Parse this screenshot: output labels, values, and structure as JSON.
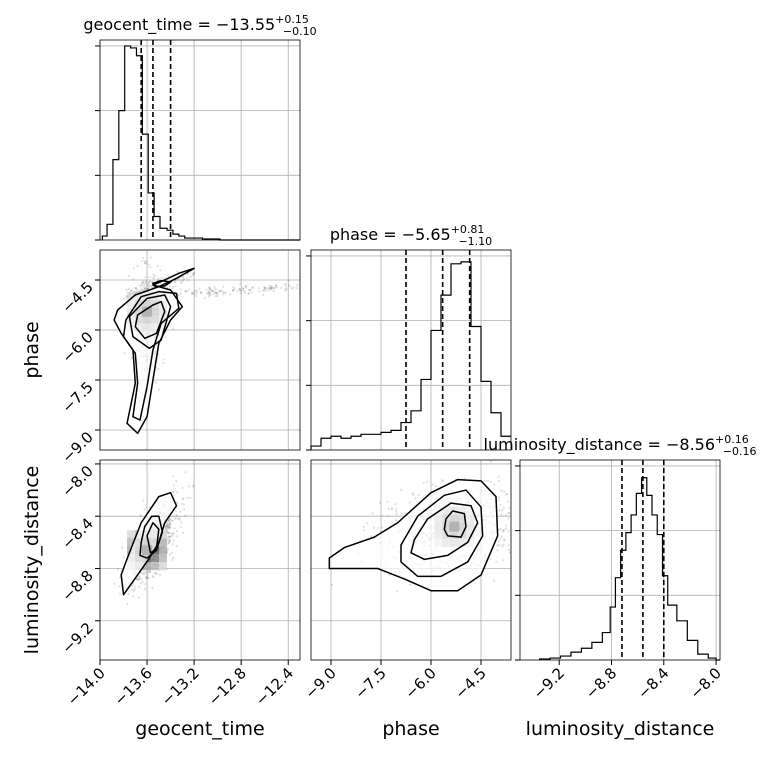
{
  "chart_data": {
    "type": "corner",
    "parameters": [
      {
        "name": "geocent_time",
        "median": -13.55,
        "plus": "0.15",
        "minus": "0.10",
        "range": [
          -14.0,
          -12.3
        ],
        "ticks": [
          -14.0,
          -13.6,
          -13.2,
          -12.8,
          -12.4
        ],
        "tick_labels": [
          "−14.0",
          "−13.6",
          "−13.2",
          "−12.8",
          "−12.4"
        ],
        "quantiles": [
          -13.65,
          -13.55,
          -13.4
        ],
        "hist_peak": 1.0,
        "hist": [
          [
            -13.98,
            0.02
          ],
          [
            -13.94,
            0.08
          ],
          [
            -13.89,
            0.41
          ],
          [
            -13.84,
            0.66
          ],
          [
            -13.79,
            0.99
          ],
          [
            -13.74,
            0.98
          ],
          [
            -13.69,
            0.94
          ],
          [
            -13.64,
            0.54
          ],
          [
            -13.59,
            0.24
          ],
          [
            -13.54,
            0.12
          ],
          [
            -13.49,
            0.06
          ],
          [
            -13.43,
            0.05
          ],
          [
            -13.38,
            0.03
          ],
          [
            -13.33,
            0.02
          ],
          [
            -13.28,
            0.01
          ],
          [
            -13.23,
            0.01
          ],
          [
            -13.18,
            0.01
          ],
          [
            -13.13,
            0.005
          ],
          [
            -13.08,
            0.005
          ],
          [
            -13.03,
            0.005
          ],
          [
            -12.98,
            0.0
          ],
          [
            -12.4,
            0.0
          ]
        ]
      },
      {
        "name": "phase",
        "median": -5.65,
        "plus": "0.81",
        "minus": "1.10",
        "range": [
          -9.6,
          -3.6
        ],
        "ticks": [
          -9.0,
          -7.5,
          -6.0,
          -4.5
        ],
        "tick_labels": [
          "−9.0",
          "−7.5",
          "−6.0",
          "−4.5"
        ],
        "quantiles": [
          -6.75,
          -5.65,
          -4.84
        ],
        "hist": [
          [
            -9.6,
            0.02
          ],
          [
            -9.3,
            0.06
          ],
          [
            -9.0,
            0.07
          ],
          [
            -8.7,
            0.06
          ],
          [
            -8.4,
            0.07
          ],
          [
            -8.1,
            0.08
          ],
          [
            -7.8,
            0.08
          ],
          [
            -7.5,
            0.09
          ],
          [
            -7.2,
            0.1
          ],
          [
            -6.9,
            0.14
          ],
          [
            -6.6,
            0.2
          ],
          [
            -6.3,
            0.36
          ],
          [
            -6.0,
            0.61
          ],
          [
            -5.7,
            0.79
          ],
          [
            -5.4,
            0.95
          ],
          [
            -5.1,
            0.96
          ],
          [
            -4.8,
            0.63
          ],
          [
            -4.5,
            0.35
          ],
          [
            -4.2,
            0.19
          ],
          [
            -3.9,
            0.07
          ]
        ]
      },
      {
        "name": "luminosity_distance",
        "median": -8.56,
        "plus": "0.16",
        "minus": "0.16",
        "range": [
          -9.5,
          -7.97
        ],
        "ticks": [
          -9.2,
          -8.8,
          -8.4,
          -8.0
        ],
        "tick_labels": [
          "−9.2",
          "−8.8",
          "−8.4",
          "−8.0"
        ],
        "quantiles": [
          -8.72,
          -8.56,
          -8.4
        ],
        "hist": [
          [
            -9.35,
            0.005
          ],
          [
            -9.27,
            0.01
          ],
          [
            -9.19,
            0.02
          ],
          [
            -9.11,
            0.04
          ],
          [
            -9.03,
            0.06
          ],
          [
            -8.95,
            0.09
          ],
          [
            -8.87,
            0.14
          ],
          [
            -8.81,
            0.27
          ],
          [
            -8.77,
            0.42
          ],
          [
            -8.73,
            0.56
          ],
          [
            -8.69,
            0.65
          ],
          [
            -8.65,
            0.74
          ],
          [
            -8.61,
            0.85
          ],
          [
            -8.57,
            0.93
          ],
          [
            -8.53,
            0.84
          ],
          [
            -8.49,
            0.74
          ],
          [
            -8.45,
            0.64
          ],
          [
            -8.41,
            0.43
          ],
          [
            -8.37,
            0.28
          ],
          [
            -8.3,
            0.2
          ],
          [
            -8.22,
            0.1
          ],
          [
            -8.14,
            0.03
          ],
          [
            -8.06,
            0.01
          ],
          [
            -8.0,
            0.0
          ]
        ]
      }
    ],
    "pairs": [
      {
        "x": "geocent_time",
        "y": "phase",
        "max_density": [
          -13.6,
          -5.45
        ],
        "contours": [
          [
            [
              -13.68,
              -5.55
            ],
            [
              -13.55,
              -5.25
            ],
            [
              -13.48,
              -5.15
            ],
            [
              -13.45,
              -5.45
            ],
            [
              -13.52,
              -6.1
            ],
            [
              -13.62,
              -6.25
            ],
            [
              -13.7,
              -5.9
            ]
          ],
          [
            [
              -13.75,
              -5.6
            ],
            [
              -13.6,
              -5.05
            ],
            [
              -13.45,
              -4.95
            ],
            [
              -13.4,
              -5.3
            ],
            [
              -13.48,
              -6.3
            ],
            [
              -13.58,
              -6.55
            ],
            [
              -13.72,
              -6.2
            ]
          ],
          [
            [
              -13.78,
              -5.7
            ],
            [
              -13.65,
              -5.0
            ],
            [
              -13.5,
              -4.85
            ],
            [
              -13.35,
              -4.9
            ],
            [
              -13.33,
              -5.35
            ],
            [
              -13.48,
              -5.8
            ],
            [
              -13.55,
              -6.6
            ],
            [
              -13.6,
              -7.7
            ],
            [
              -13.66,
              -8.7
            ],
            [
              -13.72,
              -8.6
            ],
            [
              -13.68,
              -7.6
            ],
            [
              -13.7,
              -6.7
            ],
            [
              -13.8,
              -6.2
            ]
          ],
          [
            [
              -13.85,
              -5.4
            ],
            [
              -13.7,
              -4.95
            ],
            [
              -13.5,
              -4.7
            ],
            [
              -13.35,
              -4.45
            ],
            [
              -13.2,
              -4.15
            ],
            [
              -13.33,
              -4.3
            ],
            [
              -13.45,
              -4.5
            ],
            [
              -13.55,
              -4.65
            ],
            [
              -13.4,
              -4.8
            ],
            [
              -13.3,
              -5.3
            ],
            [
              -13.4,
              -5.7
            ],
            [
              -13.5,
              -6.4
            ],
            [
              -13.55,
              -7.5
            ],
            [
              -13.6,
              -8.6
            ],
            [
              -13.68,
              -9.1
            ],
            [
              -13.77,
              -8.8
            ],
            [
              -13.7,
              -7.6
            ],
            [
              -13.72,
              -6.6
            ],
            [
              -13.82,
              -6.1
            ],
            [
              -13.88,
              -5.7
            ]
          ]
        ],
        "small_contours": [
          [
            [
              -13.55,
              -4.6
            ],
            [
              -13.48,
              -4.52
            ],
            [
              -13.4,
              -4.56
            ],
            [
              -13.45,
              -4.68
            ],
            [
              -13.53,
              -4.7
            ]
          ]
        ]
      },
      {
        "x": "geocent_time",
        "y": "luminosity_distance",
        "max_density": [
          -13.6,
          -8.66
        ],
        "contours": [
          [
            [
              -13.6,
              -8.55
            ],
            [
              -13.55,
              -8.45
            ],
            [
              -13.5,
              -8.5
            ],
            [
              -13.52,
              -8.65
            ],
            [
              -13.57,
              -8.68
            ]
          ],
          [
            [
              -13.65,
              -8.6
            ],
            [
              -13.62,
              -8.48
            ],
            [
              -13.56,
              -8.4
            ],
            [
              -13.5,
              -8.4
            ],
            [
              -13.47,
              -8.52
            ],
            [
              -13.52,
              -8.66
            ],
            [
              -13.6,
              -8.72
            ],
            [
              -13.66,
              -8.7
            ]
          ],
          [
            [
              -13.78,
              -8.75
            ],
            [
              -13.65,
              -8.45
            ],
            [
              -13.5,
              -8.25
            ],
            [
              -13.4,
              -8.22
            ],
            [
              -13.35,
              -8.32
            ],
            [
              -13.45,
              -8.45
            ],
            [
              -13.5,
              -8.6
            ],
            [
              -13.58,
              -8.72
            ],
            [
              -13.72,
              -8.9
            ],
            [
              -13.8,
              -9.0
            ],
            [
              -13.82,
              -8.85
            ]
          ]
        ],
        "small_contours": []
      },
      {
        "x": "phase",
        "y": "luminosity_distance",
        "max_density": [
          -5.3,
          -8.48
        ],
        "contours": [
          [
            [
              -5.55,
              -8.42
            ],
            [
              -5.35,
              -8.36
            ],
            [
              -5.0,
              -8.38
            ],
            [
              -4.95,
              -8.48
            ],
            [
              -5.1,
              -8.56
            ],
            [
              -5.5,
              -8.55
            ],
            [
              -5.6,
              -8.5
            ]
          ],
          [
            [
              -6.5,
              -8.58
            ],
            [
              -6.1,
              -8.42
            ],
            [
              -5.4,
              -8.3
            ],
            [
              -4.8,
              -8.32
            ],
            [
              -4.6,
              -8.45
            ],
            [
              -4.9,
              -8.6
            ],
            [
              -5.5,
              -8.7
            ],
            [
              -6.2,
              -8.73
            ],
            [
              -6.6,
              -8.68
            ]
          ],
          [
            [
              -6.9,
              -8.62
            ],
            [
              -6.4,
              -8.4
            ],
            [
              -5.6,
              -8.24
            ],
            [
              -4.95,
              -8.2
            ],
            [
              -4.5,
              -8.33
            ],
            [
              -4.45,
              -8.55
            ],
            [
              -4.9,
              -8.75
            ],
            [
              -5.7,
              -8.86
            ],
            [
              -6.4,
              -8.86
            ],
            [
              -6.9,
              -8.75
            ]
          ],
          [
            [
              -9.05,
              -8.72
            ],
            [
              -8.6,
              -8.64
            ],
            [
              -7.7,
              -8.56
            ],
            [
              -7.0,
              -8.45
            ],
            [
              -6.0,
              -8.22
            ],
            [
              -5.2,
              -8.12
            ],
            [
              -4.5,
              -8.13
            ],
            [
              -4.05,
              -8.25
            ],
            [
              -4.0,
              -8.55
            ],
            [
              -4.5,
              -8.85
            ],
            [
              -5.2,
              -8.97
            ],
            [
              -6.0,
              -8.97
            ],
            [
              -6.8,
              -8.88
            ],
            [
              -7.6,
              -8.8
            ],
            [
              -8.6,
              -8.8
            ],
            [
              -9.05,
              -8.8
            ]
          ]
        ],
        "small_contours": []
      }
    ]
  }
}
